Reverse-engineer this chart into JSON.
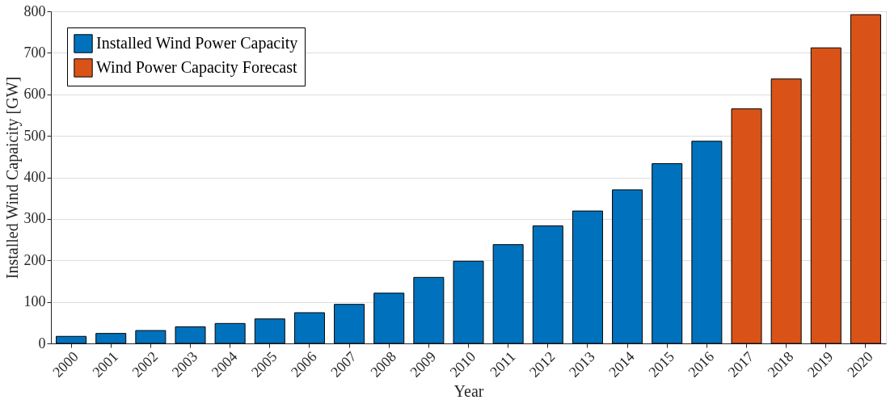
{
  "chart_data": {
    "type": "bar",
    "xlabel": "Year",
    "ylabel": "Installed Wind Capaicity [GW]",
    "categories": [
      "2000",
      "2001",
      "2002",
      "2003",
      "2004",
      "2005",
      "2006",
      "2007",
      "2008",
      "2009",
      "2010",
      "2011",
      "2012",
      "2013",
      "2014",
      "2015",
      "2016",
      "2017",
      "2018",
      "2019",
      "2020"
    ],
    "series": [
      {
        "name": "Installed Wind Power Capacity",
        "color": "#0072bd",
        "values": [
          17,
          24,
          31,
          40,
          48,
          59,
          74,
          94,
          121,
          159,
          198,
          238,
          283,
          319,
          370,
          433,
          487,
          null,
          null,
          null,
          null
        ]
      },
      {
        "name": "Wind Power Capacity Forecast",
        "color": "#d95319",
        "values": [
          null,
          null,
          null,
          null,
          null,
          null,
          null,
          null,
          null,
          null,
          null,
          null,
          null,
          null,
          null,
          null,
          null,
          565,
          637,
          712,
          792
        ]
      }
    ],
    "ylim": [
      0,
      800
    ],
    "yticks": [
      0,
      100,
      200,
      300,
      400,
      500,
      600,
      700,
      800
    ],
    "grid": "y",
    "legend": "top left"
  }
}
